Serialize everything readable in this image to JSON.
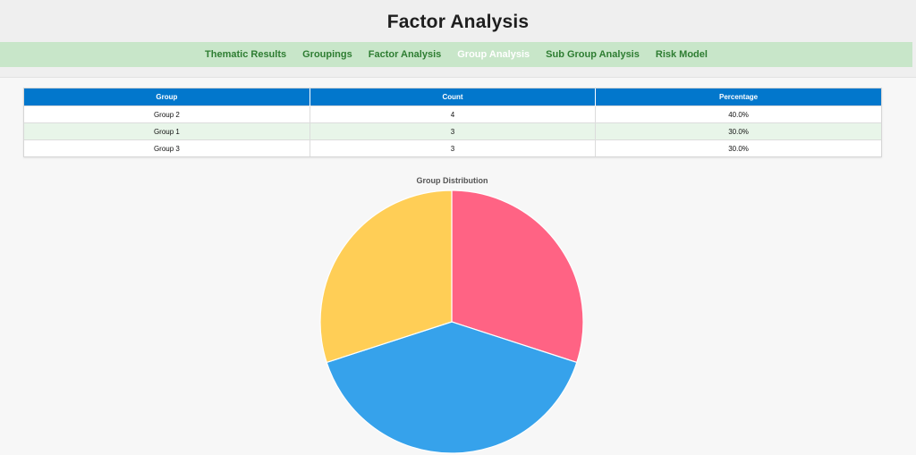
{
  "page": {
    "title": "Factor Analysis"
  },
  "nav": {
    "items": [
      {
        "label": "Thematic Results",
        "active": false
      },
      {
        "label": "Groupings",
        "active": false
      },
      {
        "label": "Factor Analysis",
        "active": false
      },
      {
        "label": "Group Analysis",
        "active": true
      },
      {
        "label": "Sub Group Analysis",
        "active": false
      },
      {
        "label": "Risk Model",
        "active": false
      }
    ],
    "active_color": "#ffffff",
    "link_color": "#2e7d32",
    "bar_color": "#c8e6c9"
  },
  "table": {
    "headers": [
      "Group",
      "Count",
      "Percentage"
    ],
    "header_color": "#0277cc",
    "rows": [
      {
        "group": "Group 2",
        "count": "4",
        "percentage": "40.0%"
      },
      {
        "group": "Group 1",
        "count": "3",
        "percentage": "30.0%"
      },
      {
        "group": "Group 3",
        "count": "3",
        "percentage": "30.0%"
      }
    ]
  },
  "chart_data": {
    "type": "pie",
    "title": "Group Distribution",
    "categories": [
      "Group 1",
      "Group 2",
      "Group 3"
    ],
    "values": [
      3,
      4,
      3
    ],
    "colors": [
      "#ff6384",
      "#36a2eb",
      "#ffce56"
    ],
    "start_angle_deg": 0,
    "direction": "clockwise-from-top"
  }
}
